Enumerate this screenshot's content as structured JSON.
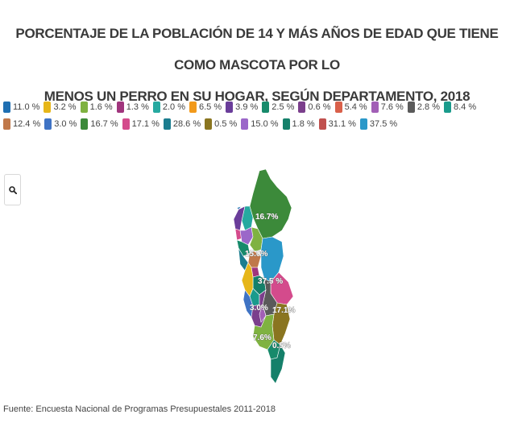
{
  "title": {
    "line1": "PORCENTAJE DE LA POBLACIÓN DE 14 Y MÁS AÑOS DE EDAD QUE TIENE COMO MASCOTA POR LO",
    "line2": "MENOS UN PERRO EN SU HOGAR, SEGÚN DEPARTAMENTO, 2018"
  },
  "legend": [
    {
      "label": "11.0 %",
      "color": "#1f6fb2"
    },
    {
      "label": "3.2 %",
      "color": "#e6b619"
    },
    {
      "label": "1.6 %",
      "color": "#7fb241"
    },
    {
      "label": "1.3 %",
      "color": "#a0357d"
    },
    {
      "label": "2.0 %",
      "color": "#26a9a0"
    },
    {
      "label": "6.5 %",
      "color": "#f29a1b"
    },
    {
      "label": "3.9 %",
      "color": "#6a3d9a"
    },
    {
      "label": "2.5 %",
      "color": "#178a6b"
    },
    {
      "label": "0.6 %",
      "color": "#7b3f8c"
    },
    {
      "label": "5.4 %",
      "color": "#d9604a"
    },
    {
      "label": "7.6 %",
      "color": "#a25fb6"
    },
    {
      "label": "2.8 %",
      "color": "#5a5a5a"
    },
    {
      "label": "8.4 %",
      "color": "#1a9b8c"
    },
    {
      "label": "12.4 %",
      "color": "#c0784a"
    },
    {
      "label": "3.0 %",
      "color": "#3f73c4"
    },
    {
      "label": "16.7 %",
      "color": "#3c8a3a"
    },
    {
      "label": "17.1 %",
      "color": "#d44b8c"
    },
    {
      "label": "28.6 %",
      "color": "#1b7d8f"
    },
    {
      "label": "0.5 %",
      "color": "#8a7520"
    },
    {
      "label": "15.0 %",
      "color": "#9b67c9"
    },
    {
      "label": "1.8 %",
      "color": "#15806a"
    },
    {
      "label": "31.1 %",
      "color": "#c0504d"
    },
    {
      "label": "37.5 %",
      "color": "#2a98c9"
    }
  ],
  "search": {
    "icon": "search-icon"
  },
  "map": {
    "labels": [
      "16.7%",
      "15.0%",
      "37.5 %",
      "3.0%",
      "17.1%",
      "7.6%",
      "0.5%"
    ]
  },
  "source": "Fuente: Encuesta Nacional de Programas Presupuestales 2011-2018"
}
